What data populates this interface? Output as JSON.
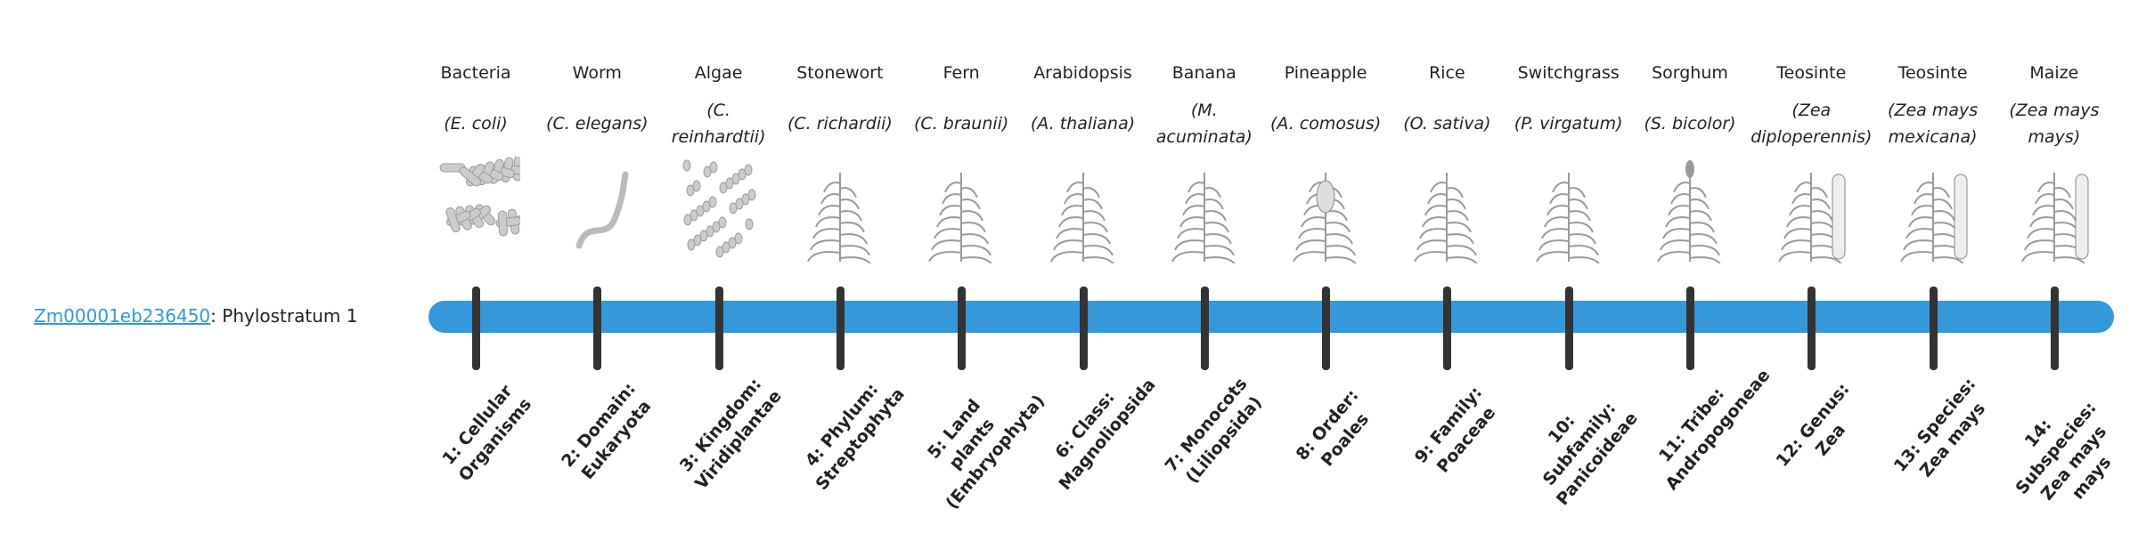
{
  "gene": {
    "id": "Zm00001eb236450",
    "suffix": ": Phylostratum 1"
  },
  "bar_color": "#3498db",
  "tick_color": "#333333",
  "strata": [
    {
      "common": "Bacteria",
      "scientific": "(E. coli)",
      "rank": "1: Cellular Organisms",
      "image": "bacteria-illustration"
    },
    {
      "common": "Worm",
      "scientific": "(C. elegans)",
      "rank": "2: Domain: Eukaryota",
      "image": "worm-illustration"
    },
    {
      "common": "Algae",
      "scientific": "(C. reinhardtii)",
      "rank": "3: Kingdom: Viridiplantae",
      "image": "algae-illustration"
    },
    {
      "common": "Stonewort",
      "scientific": "(C. richardii)",
      "rank": "4: Phylum: Streptophyta",
      "image": "stonewort-illustration"
    },
    {
      "common": "Fern",
      "scientific": "(C. braunii)",
      "rank": "5: Land plants (Embryophyta)",
      "image": "fern-illustration"
    },
    {
      "common": "Arabidopsis",
      "scientific": "(A. thaliana)",
      "rank": "6: Class: Magnoliopsida",
      "image": "arabidopsis-illustration"
    },
    {
      "common": "Banana",
      "scientific": "(M. acuminata)",
      "rank": "7: Monocots (Liliopsida)",
      "image": "banana-illustration"
    },
    {
      "common": "Pineapple",
      "scientific": "(A. comosus)",
      "rank": "8: Order: Poales",
      "image": "pineapple-illustration"
    },
    {
      "common": "Rice",
      "scientific": "(O. sativa)",
      "rank": "9: Family: Poaceae",
      "image": "rice-illustration"
    },
    {
      "common": "Switchgrass",
      "scientific": "(P. virgatum)",
      "rank": "10: Subfamily: Panicoideae",
      "image": "switchgrass-illustration"
    },
    {
      "common": "Sorghum",
      "scientific": "(S. bicolor)",
      "rank": "11: Tribe: Andropogoneae",
      "image": "sorghum-illustration"
    },
    {
      "common": "Teosinte",
      "scientific": "(Zea diploperennis)",
      "rank": "12: Genus: Zea",
      "image": "teosinte-illustration"
    },
    {
      "common": "Teosinte",
      "scientific": "(Zea mays mexicana)",
      "rank": "13: Species: Zea mays",
      "image": "teosinte-mexicana-illustration"
    },
    {
      "common": "Maize",
      "scientific": "(Zea mays mays)",
      "rank": "14: Subspecies: Zea mays mays",
      "image": "maize-illustration"
    }
  ]
}
